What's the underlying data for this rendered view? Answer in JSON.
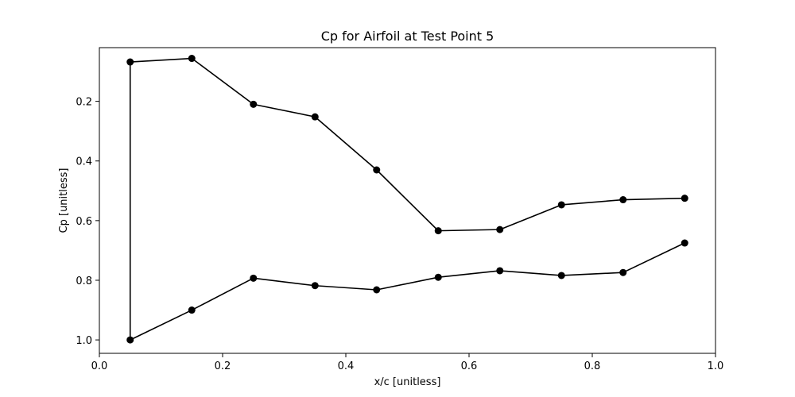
{
  "chart_data": {
    "type": "line",
    "title": "Cp for Airfoil at Test Point 5",
    "xlabel": "x/c [unitless]",
    "ylabel": "Cp [unitless]",
    "xlim": [
      0.0,
      1.0
    ],
    "ylim": [
      1.045,
      0.02
    ],
    "y_inverted": true,
    "grid": false,
    "legend": "none",
    "x_ticks": [
      "0.0",
      "0.2",
      "0.4",
      "0.6",
      "0.8",
      "1.0"
    ],
    "y_ticks": [
      "0.2",
      "0.4",
      "0.6",
      "0.8",
      "1.0"
    ],
    "series": [
      {
        "color": "#000000",
        "marker": "circle",
        "x": [
          0.95,
          0.85,
          0.75,
          0.65,
          0.55,
          0.45,
          0.35,
          0.25,
          0.15,
          0.05,
          0.05,
          0.15,
          0.25,
          0.35,
          0.45,
          0.55,
          0.65,
          0.75,
          0.85,
          0.95
        ],
        "y": [
          0.525,
          0.53,
          0.547,
          0.63,
          0.634,
          0.43,
          0.252,
          0.21,
          0.056,
          0.068,
          1.0,
          0.9,
          0.793,
          0.818,
          0.832,
          0.79,
          0.768,
          0.784,
          0.774,
          0.675
        ]
      }
    ]
  }
}
